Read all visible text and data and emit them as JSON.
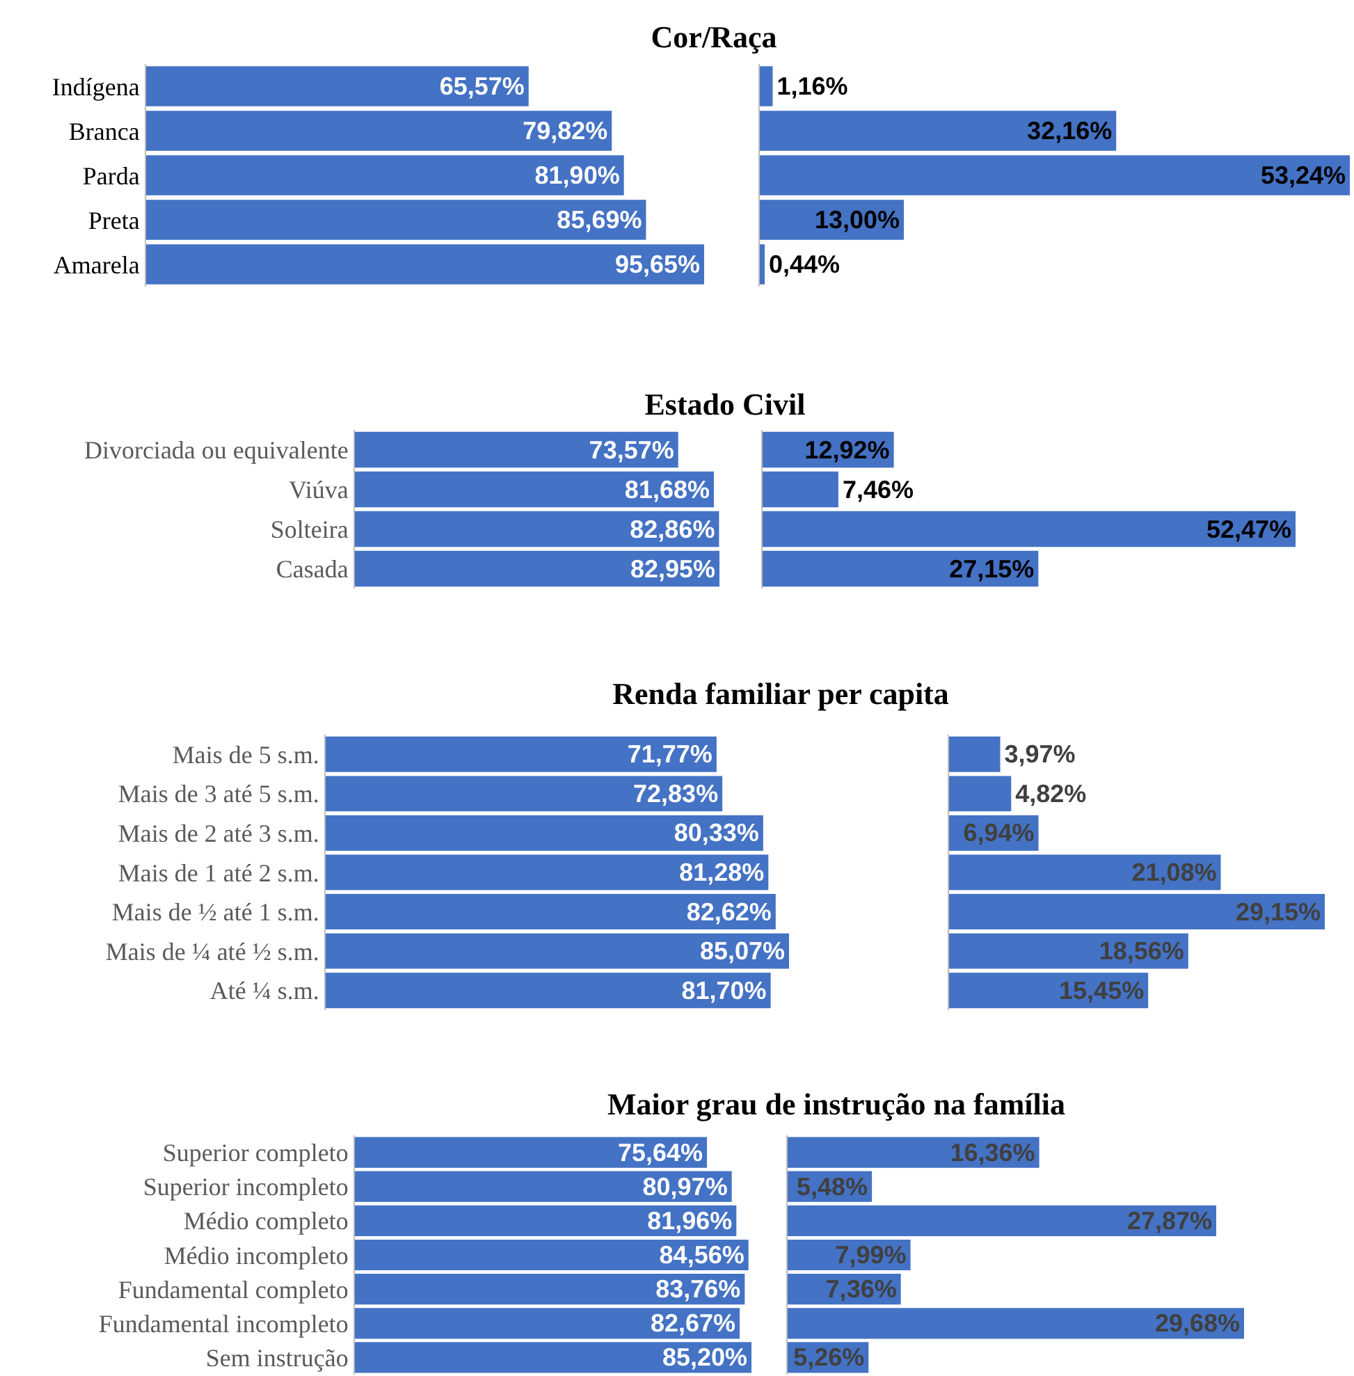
{
  "chart_data": [
    {
      "type": "bar",
      "orientation": "horizontal",
      "title": "Cor/Raça",
      "categories": [
        "Indígena",
        "Branca",
        "Parda",
        "Preta",
        "Amarela"
      ],
      "values": [
        65.57,
        79.82,
        81.9,
        85.69,
        95.65
      ],
      "value_labels": [
        "65,57%",
        "79,82%",
        "81,90%",
        "85,69%",
        "95,65%"
      ],
      "color": "#4472c4",
      "tick_labels": "y"
    },
    {
      "type": "bar",
      "orientation": "horizontal",
      "categories": [
        null,
        null,
        null,
        null,
        null
      ],
      "values": [
        1.16,
        32.16,
        53.24,
        13.0,
        0.44
      ],
      "value_labels": [
        "1,16%",
        "32,16%",
        "53,24%",
        "13,00%",
        "0,44%"
      ],
      "color": "#4472c4"
    },
    {
      "type": "bar",
      "orientation": "horizontal",
      "title": "Estado Civil",
      "categories": [
        "Divorciada ou equivalente",
        "Viúva",
        "Solteira",
        "Casada"
      ],
      "values": [
        73.57,
        81.68,
        82.86,
        82.95
      ],
      "value_labels": [
        "73,57%",
        "81,68%",
        "82,86%",
        "82,95%"
      ],
      "color": "#4472c4",
      "tick_labels": "y"
    },
    {
      "type": "bar",
      "orientation": "horizontal",
      "categories": [
        null,
        null,
        null,
        null
      ],
      "values": [
        12.92,
        7.46,
        52.47,
        27.15
      ],
      "value_labels": [
        "12,92%",
        "7,46%",
        "52,47%",
        "27,15%"
      ],
      "color": "#4472c4"
    },
    {
      "type": "bar",
      "orientation": "horizontal",
      "title": "Renda familiar per capita",
      "categories": [
        "Mais de 5 s.m.",
        "Mais de 3 até 5 s.m.",
        "Mais de 2 até 3 s.m.",
        "Mais de 1 até 2 s.m.",
        "Mais de ½ até 1 s.m.",
        "Mais de ¼ até ½ s.m.",
        "Até ¼ s.m."
      ],
      "values": [
        71.77,
        72.83,
        80.33,
        81.28,
        82.62,
        85.07,
        81.7
      ],
      "value_labels": [
        "71,77%",
        "72,83%",
        "80,33%",
        "81,28%",
        "82,62%",
        "85,07%",
        "81,70%"
      ],
      "color": "#4472c4",
      "tick_labels": "y"
    },
    {
      "type": "bar",
      "orientation": "horizontal",
      "categories": [
        null,
        null,
        null,
        null,
        null,
        null,
        null
      ],
      "values": [
        3.97,
        4.82,
        6.94,
        21.08,
        29.15,
        18.56,
        15.45
      ],
      "value_labels": [
        "3,97%",
        "4,82%",
        "6,94%",
        "21,08%",
        "29,15%",
        "18,56%",
        "15,45%"
      ],
      "color": "#4472c4"
    },
    {
      "type": "bar",
      "orientation": "horizontal",
      "title": "Maior grau de instrução na família",
      "categories": [
        "Superior completo",
        "Superior incompleto",
        "Médio completo",
        "Médio incompleto",
        "Fundamental completo",
        "Fundamental incompleto",
        "Sem instrução"
      ],
      "values": [
        75.64,
        80.97,
        81.96,
        84.56,
        83.76,
        82.67,
        85.2
      ],
      "value_labels": [
        "75,64%",
        "80,97%",
        "81,96%",
        "84,56%",
        "83,76%",
        "82,67%",
        "85,20%"
      ],
      "color": "#4472c4",
      "tick_labels": "y"
    },
    {
      "type": "bar",
      "orientation": "horizontal",
      "categories": [
        null,
        null,
        null,
        null,
        null,
        null,
        null
      ],
      "values": [
        16.36,
        5.48,
        27.87,
        7.99,
        7.36,
        29.68,
        5.26
      ],
      "value_labels": [
        "16,36%",
        "5,48%",
        "27,87%",
        "7,99%",
        "7,36%",
        "29,68%",
        "5,26%"
      ],
      "color": "#4472c4"
    }
  ]
}
